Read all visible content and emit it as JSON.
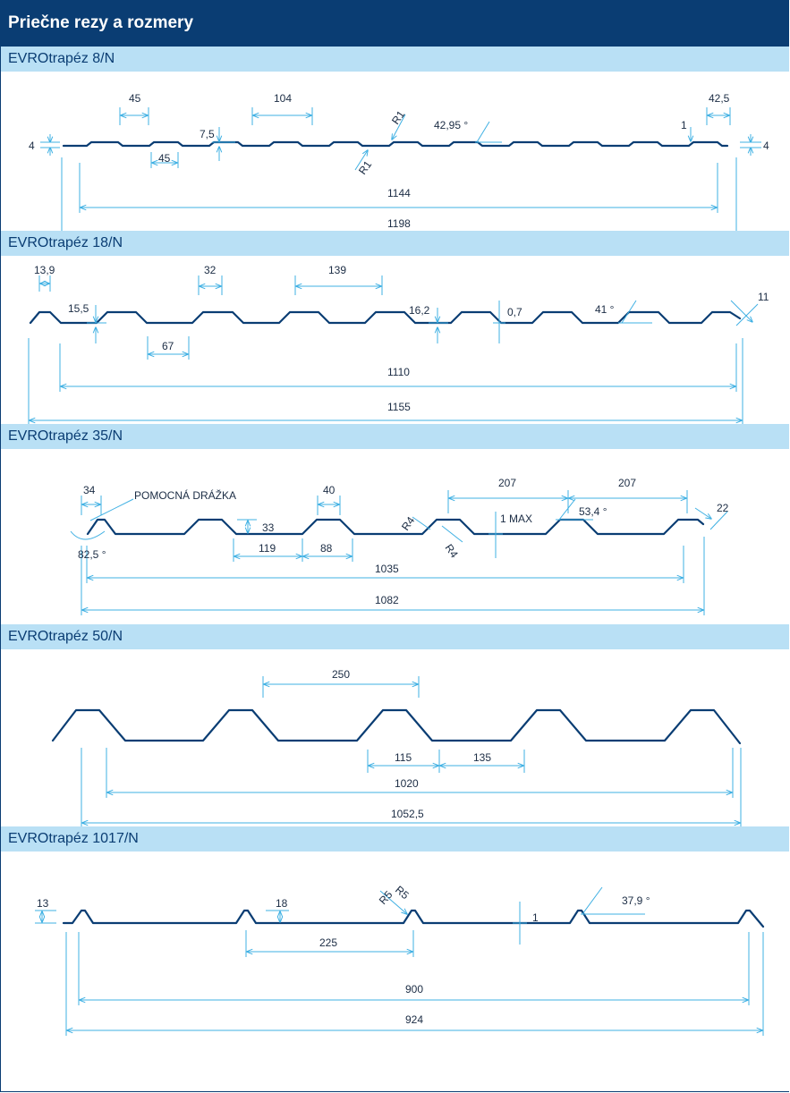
{
  "page_title": "Priečne rezy a rozmery",
  "colors": {
    "header": "#0a3d73",
    "section": "#b9e0f5",
    "profile": "#0a3d73",
    "dimension": "#3fb0e3"
  },
  "sections": [
    {
      "title": "EVROtrapéz 8/N",
      "labels": {
        "d45a": "45",
        "d104": "104",
        "d42_5": "42,5",
        "d4l": "4",
        "d4r": "4",
        "d7_5": "7,5",
        "d45b": "45",
        "r1a": "R1",
        "r1b": "R1",
        "ang": "42,95 °",
        "d1": "1",
        "w1": "1144",
        "w2": "1198"
      }
    },
    {
      "title": "EVROtrapéz 18/N",
      "labels": {
        "d13_9": "13,9",
        "d32": "32",
        "d139": "139",
        "d15_5": "15,5",
        "d67": "67",
        "d16_2": "16,2",
        "d0_7": "0,7",
        "ang": "41 °",
        "d11": "11",
        "w1": "1110",
        "w2": "1155"
      }
    },
    {
      "title": "EVROtrapéz 35/N",
      "labels": {
        "d34": "34",
        "groove": "POMOCNÁ DRÁŽKA",
        "ang1": "82,5 °",
        "d40": "40",
        "d33": "33",
        "d119": "119",
        "d88": "88",
        "r4a": "R4",
        "r4b": "R4",
        "max": "1 MAX",
        "d207a": "207",
        "d207b": "207",
        "ang2": "53,4 °",
        "d22": "22",
        "w1": "1035",
        "w2": "1082"
      }
    },
    {
      "title": "EVROtrapéz 50/N",
      "labels": {
        "d250": "250",
        "d115": "115",
        "d135": "135",
        "w1": "1020",
        "w2": "1052,5"
      }
    },
    {
      "title": "EVROtrapéz 1017/N",
      "labels": {
        "d13": "13",
        "d18": "18",
        "r5a": "R5",
        "r5b": "R5",
        "d1": "1",
        "ang": "37,9 °",
        "d225": "225",
        "w1": "900",
        "w2": "924"
      }
    }
  ]
}
